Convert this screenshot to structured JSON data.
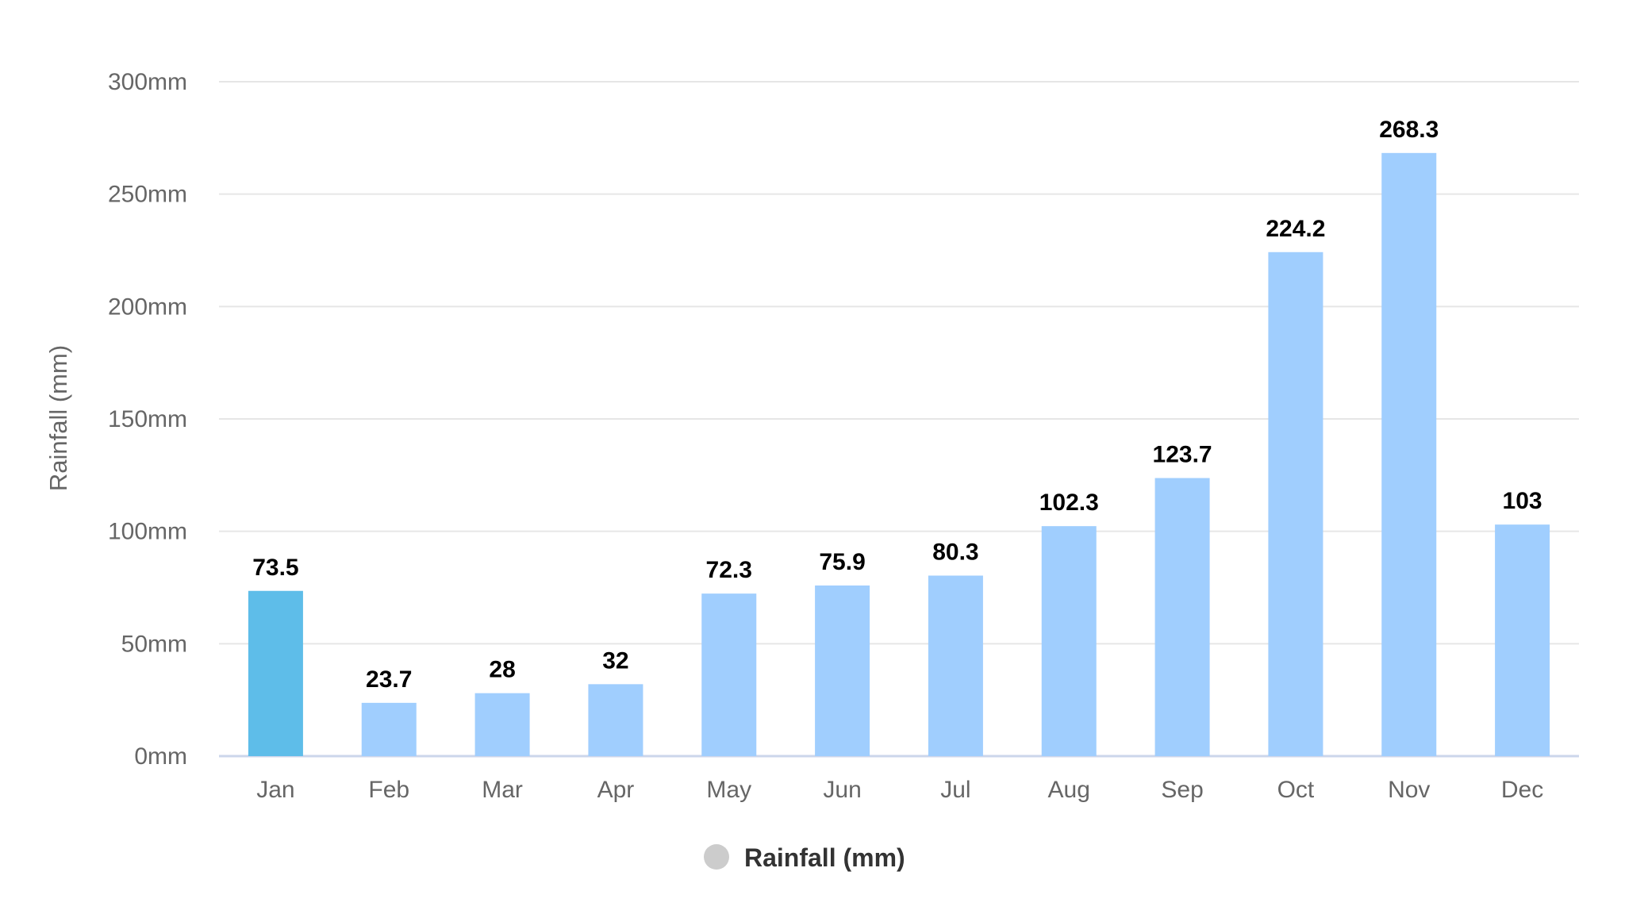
{
  "chart_data": {
    "type": "bar",
    "categories": [
      "Jan",
      "Feb",
      "Mar",
      "Apr",
      "May",
      "Jun",
      "Jul",
      "Aug",
      "Sep",
      "Oct",
      "Nov",
      "Dec"
    ],
    "series": [
      {
        "name": "Rainfall (mm)",
        "values": [
          73.5,
          23.7,
          28,
          32,
          72.3,
          75.9,
          80.3,
          102.3,
          123.7,
          224.2,
          268.3,
          103
        ],
        "data_labels": [
          "73.5",
          "23.7",
          "28",
          "32",
          "72.3",
          "75.9",
          "80.3",
          "102.3",
          "123.7",
          "224.2",
          "268.3",
          "103"
        ]
      }
    ],
    "title": "",
    "xlabel": "",
    "ylabel": "Rainfall (mm)",
    "ylim": [
      0,
      300
    ],
    "y_ticks": [
      0,
      50,
      100,
      150,
      200,
      250,
      300
    ],
    "y_tick_labels": [
      "0mm",
      "50mm",
      "100mm",
      "150mm",
      "200mm",
      "250mm",
      "300mm"
    ],
    "grid": true,
    "legend_position": "bottom-center",
    "highlighted_category": "Jan",
    "colors": {
      "bar": "#a0cefe",
      "bar_highlight": "#5ebde9",
      "legend_marker": "#cccccc",
      "grid": "#e6e6e6",
      "baseline": "#ccd6eb"
    }
  }
}
